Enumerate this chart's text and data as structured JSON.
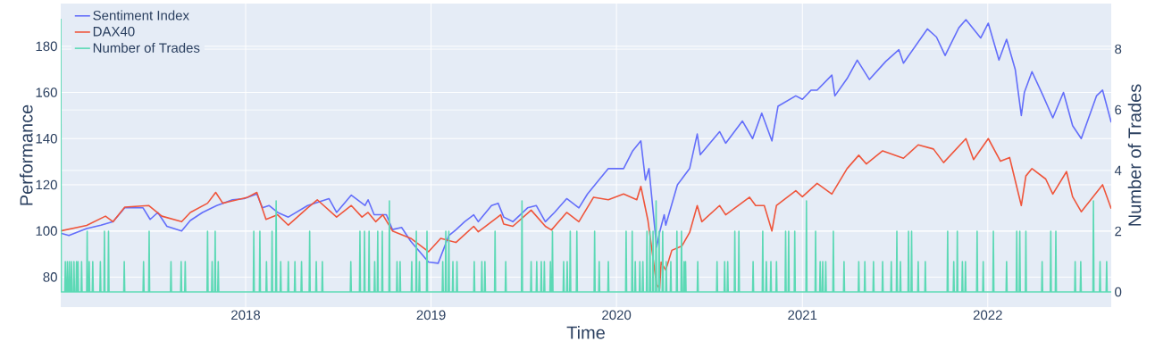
{
  "chart_data": {
    "type": "line",
    "xlabel": "Time",
    "ylabel": "Performance",
    "y2label": "Number of Trades",
    "xlim": [
      "2017-01-02",
      "2022-09-01"
    ],
    "xticks": [
      {
        "value": "2018-01-01",
        "label": "2018"
      },
      {
        "value": "2019-01-01",
        "label": "2019"
      },
      {
        "value": "2020-01-01",
        "label": "2020"
      },
      {
        "value": "2021-01-01",
        "label": "2021"
      },
      {
        "value": "2022-01-01",
        "label": "2022"
      }
    ],
    "ylim": [
      67,
      198.5
    ],
    "yticks": [
      80,
      100,
      120,
      140,
      160,
      180
    ],
    "y2lim": [
      -0.5,
      9.5
    ],
    "y2ticks": [
      0,
      2,
      4,
      6,
      8
    ],
    "grid": true,
    "legend": "top left",
    "series": [
      {
        "name": "Sentiment Index",
        "color": "#636efa",
        "x": [
          "2017-01-02",
          "2017-01-18",
          "2017-02-22",
          "2017-03-22",
          "2017-04-15",
          "2017-05-08",
          "2017-06-13",
          "2017-06-27",
          "2017-07-12",
          "2017-07-30",
          "2017-08-28",
          "2017-09-14",
          "2017-10-08",
          "2017-11-05",
          "2017-12-06",
          "2017-12-29",
          "2018-01-23",
          "2018-02-03",
          "2018-02-16",
          "2018-03-05",
          "2018-03-26",
          "2018-05-03",
          "2018-06-14",
          "2018-06-29",
          "2018-07-28",
          "2018-08-24",
          "2018-08-30",
          "2018-09-11",
          "2018-10-05",
          "2018-10-17",
          "2018-11-04",
          "2018-11-22",
          "2018-12-27",
          "2019-01-15",
          "2019-02-05",
          "2019-02-19",
          "2019-03-08",
          "2019-03-26",
          "2019-04-04",
          "2019-04-30",
          "2019-05-13",
          "2019-05-24",
          "2019-06-11",
          "2019-07-10",
          "2019-07-27",
          "2019-08-14",
          "2019-09-01",
          "2019-09-25",
          "2019-10-19",
          "2019-11-05",
          "2019-11-29",
          "2019-12-16",
          "2020-01-15",
          "2020-02-02",
          "2020-02-18",
          "2020-02-27",
          "2020-03-05",
          "2020-03-20",
          "2020-03-26",
          "2020-04-04",
          "2020-04-07",
          "2020-04-30",
          "2020-05-24",
          "2020-06-08",
          "2020-06-14",
          "2020-07-22",
          "2020-08-03",
          "2020-09-05",
          "2020-09-25",
          "2020-10-13",
          "2020-11-02",
          "2020-11-14",
          "2020-12-19",
          "2021-01-01",
          "2021-01-18",
          "2021-01-30",
          "2021-02-28",
          "2021-03-06",
          "2021-03-30",
          "2021-04-19",
          "2021-05-13",
          "2021-06-14",
          "2021-07-10",
          "2021-07-19",
          "2021-09-04",
          "2021-09-22",
          "2021-10-09",
          "2021-11-05",
          "2021-11-19",
          "2021-12-18",
          "2022-01-02",
          "2022-01-23",
          "2022-02-07",
          "2022-02-24",
          "2022-03-08",
          "2022-03-14",
          "2022-03-29",
          "2022-04-19",
          "2022-05-09",
          "2022-05-30",
          "2022-06-17",
          "2022-07-04",
          "2022-08-03",
          "2022-08-15",
          "2022-09-01"
        ],
        "values": [
          99,
          98,
          101,
          102.5,
          104,
          110,
          110,
          105,
          108,
          102,
          100,
          104.5,
          108,
          111,
          113.5,
          114,
          116,
          110,
          111,
          108,
          106,
          111,
          114,
          108,
          115.5,
          111,
          113.5,
          107,
          107,
          100.6,
          101.5,
          95.5,
          86.5,
          86,
          98,
          100.5,
          104,
          107,
          104,
          111,
          112,
          106,
          104,
          110,
          111,
          104,
          108,
          114,
          110,
          116,
          122.5,
          127,
          127,
          134.7,
          139,
          122,
          127,
          93,
          99.5,
          107,
          102.5,
          120,
          127,
          142,
          133,
          143,
          138,
          147.6,
          140,
          151,
          139,
          154,
          158.5,
          157,
          161,
          161,
          167.5,
          158.5,
          166,
          174,
          165.6,
          173.4,
          178.5,
          172.7,
          187.5,
          184,
          176,
          188,
          191.5,
          183.6,
          190,
          174,
          183,
          170,
          150,
          160,
          169,
          159,
          149,
          160,
          145.6,
          140,
          158.5,
          161,
          147
        ]
      },
      {
        "name": "DAX40",
        "color": "#ef553b",
        "x": [
          "2017-01-02",
          "2017-02-22",
          "2017-03-31",
          "2017-04-15",
          "2017-05-08",
          "2017-06-24",
          "2017-07-20",
          "2017-08-28",
          "2017-09-14",
          "2017-10-18",
          "2017-11-03",
          "2017-11-17",
          "2018-01-05",
          "2018-01-23",
          "2018-02-10",
          "2018-03-05",
          "2018-03-26",
          "2018-05-03",
          "2018-05-22",
          "2018-06-29",
          "2018-07-28",
          "2018-08-18",
          "2018-08-30",
          "2018-09-14",
          "2018-09-28",
          "2018-10-17",
          "2018-11-22",
          "2018-12-27",
          "2019-01-20",
          "2019-02-19",
          "2019-03-26",
          "2019-04-04",
          "2019-05-18",
          "2019-05-24",
          "2019-06-11",
          "2019-07-17",
          "2019-08-14",
          "2019-08-26",
          "2019-09-25",
          "2019-10-19",
          "2019-11-17",
          "2019-12-16",
          "2020-01-15",
          "2020-02-10",
          "2020-02-18",
          "2020-03-03",
          "2020-03-20",
          "2020-03-26",
          "2020-03-29",
          "2020-04-07",
          "2020-04-19",
          "2020-05-09",
          "2020-05-24",
          "2020-06-08",
          "2020-06-17",
          "2020-07-22",
          "2020-08-03",
          "2020-09-19",
          "2020-10-01",
          "2020-10-18",
          "2020-11-02",
          "2020-11-11",
          "2020-12-19",
          "2021-01-01",
          "2021-01-30",
          "2021-02-28",
          "2021-03-30",
          "2021-04-22",
          "2021-05-07",
          "2021-06-08",
          "2021-07-19",
          "2021-08-17",
          "2021-09-16",
          "2021-10-06",
          "2021-11-19",
          "2021-12-04",
          "2022-01-02",
          "2022-01-26",
          "2022-02-13",
          "2022-03-08",
          "2022-03-17",
          "2022-03-29",
          "2022-04-25",
          "2022-05-09",
          "2022-06-05",
          "2022-06-17",
          "2022-07-04",
          "2022-08-15",
          "2022-09-01"
        ],
        "values": [
          100,
          102.4,
          106.4,
          104,
          110.3,
          111,
          106.4,
          104,
          108,
          112,
          116.7,
          112,
          114.6,
          116.7,
          105,
          107,
          102.5,
          110,
          113.5,
          106,
          111,
          106,
          108,
          104,
          107,
          100,
          96.8,
          91,
          96.8,
          95,
          102,
          99.6,
          107,
          103,
          102,
          109,
          102,
          100.4,
          108,
          104,
          114.6,
          113.5,
          116,
          113.5,
          119.3,
          104.5,
          76.8,
          75,
          86.5,
          83,
          91.6,
          93.5,
          99.3,
          111,
          104,
          111,
          107,
          114.6,
          111,
          111,
          100,
          111,
          117.4,
          114.8,
          120.6,
          116,
          127,
          132.8,
          129,
          134.7,
          131.5,
          137.3,
          135.5,
          129.6,
          140,
          130.9,
          140,
          130.2,
          131.8,
          111,
          123.8,
          127,
          122.5,
          116,
          125.7,
          114.8,
          108.3,
          120,
          109.6
        ]
      },
      {
        "name": "Number of Trades",
        "color": "#5cd9b5",
        "axis": "y2",
        "x": [
          "2017-01-02",
          "2017-01-03",
          "2017-01-10",
          "2017-01-11",
          "2017-01-12",
          "2017-01-14",
          "2017-01-15",
          "2017-01-16",
          "2017-01-18",
          "2017-01-19",
          "2017-01-20",
          "2017-01-22",
          "2017-01-23",
          "2017-01-24",
          "2017-01-27",
          "2017-01-28",
          "2017-01-29",
          "2017-02-01",
          "2017-02-02",
          "2017-02-03",
          "2017-02-04",
          "2017-02-05",
          "2017-02-06",
          "2017-02-11",
          "2017-02-12",
          "2017-02-13",
          "2017-02-22",
          "2017-02-23",
          "2017-02-24",
          "2017-02-26",
          "2017-02-27",
          "2017-02-28",
          "2017-03-05",
          "2017-03-06",
          "2017-03-07",
          "2017-03-20",
          "2017-03-21",
          "2017-03-22",
          "2017-03-28",
          "2017-03-29",
          "2017-03-30",
          "2017-04-05",
          "2017-04-06",
          "2017-04-07",
          "2017-05-06",
          "2017-05-07",
          "2017-05-08",
          "2017-06-13",
          "2017-06-14",
          "2017-06-15",
          "2017-06-24",
          "2017-06-25",
          "2017-06-26",
          "2017-08-06",
          "2017-08-07",
          "2017-08-08",
          "2017-08-26",
          "2017-08-27",
          "2017-08-28",
          "2017-09-03",
          "2017-09-04",
          "2017-09-05",
          "2017-10-17",
          "2017-10-18",
          "2017-10-19",
          "2017-10-26",
          "2017-10-27",
          "2017-10-28",
          "2017-11-01",
          "2017-11-02",
          "2017-11-03",
          "2017-11-07",
          "2017-11-08",
          "2017-11-09",
          "2018-01-16",
          "2018-01-17",
          "2018-01-18",
          "2018-01-28",
          "2018-01-29",
          "2018-01-30",
          "2018-02-10",
          "2018-02-11",
          "2018-02-12",
          "2018-02-21",
          "2018-02-22",
          "2018-02-23",
          "2018-03-01",
          "2018-03-02",
          "2018-03-03",
          "2018-03-10",
          "2018-03-11",
          "2018-03-12",
          "2018-03-25",
          "2018-03-26",
          "2018-03-27",
          "2018-04-07",
          "2018-04-08",
          "2018-04-09",
          "2018-04-20",
          "2018-04-21",
          "2018-04-22",
          "2018-05-06",
          "2018-05-07",
          "2018-05-08",
          "2018-05-19",
          "2018-05-20",
          "2018-05-21",
          "2018-05-31",
          "2018-06-01",
          "2018-06-02",
          "2018-07-26",
          "2018-07-27",
          "2018-07-28",
          "2018-08-13",
          "2018-08-14",
          "2018-08-15",
          "2018-08-22",
          "2018-08-23",
          "2018-08-24",
          "2018-08-31",
          "2018-09-01",
          "2018-09-02",
          "2018-09-11",
          "2018-09-12",
          "2018-09-13",
          "2018-09-17",
          "2018-09-18",
          "2018-09-19",
          "2018-09-26",
          "2018-09-27",
          "2018-09-28",
          "2018-10-10",
          "2018-10-11",
          "2018-10-12",
          "2018-10-25",
          "2018-10-26",
          "2018-10-27",
          "2018-10-31",
          "2018-11-01",
          "2018-11-02",
          "2018-11-23",
          "2018-11-24",
          "2018-11-25",
          "2018-12-02",
          "2018-12-03",
          "2018-12-04",
          "2018-12-08",
          "2018-12-09",
          "2018-12-10",
          "2018-12-23",
          "2018-12-24",
          "2018-12-25",
          "2019-01-23",
          "2019-01-24",
          "2019-01-25",
          "2019-01-29",
          "2019-01-30",
          "2019-01-31",
          "2019-02-04",
          "2019-02-05",
          "2019-02-06",
          "2019-02-12",
          "2019-02-13",
          "2019-02-14",
          "2019-02-20",
          "2019-02-21",
          "2019-02-22",
          "2019-03-26",
          "2019-03-27",
          "2019-03-28",
          "2019-04-10",
          "2019-04-11",
          "2019-04-12",
          "2019-04-16",
          "2019-04-17",
          "2019-04-18",
          "2019-05-06",
          "2019-05-07",
          "2019-05-08",
          "2019-05-27",
          "2019-05-28",
          "2019-05-29",
          "2019-06-28",
          "2019-06-29",
          "2019-06-30",
          "2019-07-16",
          "2019-07-17",
          "2019-07-18",
          "2019-07-27",
          "2019-07-28",
          "2019-07-29",
          "2019-08-05",
          "2019-08-06",
          "2019-08-07",
          "2019-08-11",
          "2019-08-12",
          "2019-08-13",
          "2019-08-23",
          "2019-08-24",
          "2019-08-25",
          "2019-08-27",
          "2019-08-28",
          "2019-08-29",
          "2019-09-18",
          "2019-09-19",
          "2019-09-20",
          "2019-09-25",
          "2019-09-26",
          "2019-09-27",
          "2019-10-01",
          "2019-10-02",
          "2019-10-03",
          "2019-10-14",
          "2019-10-15",
          "2019-10-16",
          "2019-11-18",
          "2019-11-19",
          "2019-11-20",
          "2019-11-27",
          "2019-11-28",
          "2019-11-29",
          "2019-12-15",
          "2019-12-16",
          "2019-12-17",
          "2020-01-19",
          "2020-01-20",
          "2020-01-21",
          "2020-01-31",
          "2020-02-01",
          "2020-02-02",
          "2020-02-06",
          "2020-02-07",
          "2020-02-08",
          "2020-02-15",
          "2020-02-16",
          "2020-02-17",
          "2020-02-21",
          "2020-02-22",
          "2020-02-23",
          "2020-02-29",
          "2020-03-01",
          "2020-03-02",
          "2020-03-06",
          "2020-03-07",
          "2020-03-08",
          "2020-03-12",
          "2020-03-13",
          "2020-03-14",
          "2020-03-18",
          "2020-03-19",
          "2020-03-20",
          "2020-03-24",
          "2020-03-25",
          "2020-03-26",
          "2020-03-31",
          "2020-04-01",
          "2020-04-02",
          "2020-04-07",
          "2020-04-08",
          "2020-04-09",
          "2020-04-16",
          "2020-04-17",
          "2020-04-18",
          "2020-04-28",
          "2020-04-29",
          "2020-04-30",
          "2020-05-07",
          "2020-05-08",
          "2020-05-09",
          "2020-05-12",
          "2020-05-13",
          "2020-05-14",
          "2020-05-15",
          "2020-05-16",
          "2020-05-17",
          "2020-06-08",
          "2020-06-09",
          "2020-06-10",
          "2020-07-16",
          "2020-07-17",
          "2020-07-18",
          "2020-07-31",
          "2020-08-01",
          "2020-08-02",
          "2020-08-06",
          "2020-08-07",
          "2020-08-08",
          "2020-08-20",
          "2020-08-21",
          "2020-08-22",
          "2020-08-28",
          "2020-08-29",
          "2020-08-30",
          "2020-09-25",
          "2020-09-26",
          "2020-09-27",
          "2020-10-14",
          "2020-10-15",
          "2020-10-16",
          "2020-10-21",
          "2020-10-22",
          "2020-10-23",
          "2020-10-30",
          "2020-10-31",
          "2020-11-01",
          "2020-11-10",
          "2020-11-11",
          "2020-11-12",
          "2020-11-28",
          "2020-11-29",
          "2020-11-30",
          "2020-12-04",
          "2020-12-05",
          "2020-12-06",
          "2020-12-16",
          "2020-12-17",
          "2020-12-18",
          "2021-01-08",
          "2021-01-09",
          "2021-01-10",
          "2021-01-26",
          "2021-01-27",
          "2021-01-28",
          "2021-02-04",
          "2021-02-05",
          "2021-02-06",
          "2021-02-09",
          "2021-02-10",
          "2021-02-11",
          "2021-02-15",
          "2021-02-16",
          "2021-02-17",
          "2021-03-02",
          "2021-03-03",
          "2021-03-04",
          "2021-03-23",
          "2021-03-24",
          "2021-03-25",
          "2021-04-21",
          "2021-04-22",
          "2021-04-23",
          "2021-05-03",
          "2021-05-04",
          "2021-05-05",
          "2021-05-20",
          "2021-05-21",
          "2021-05-22",
          "2021-06-07",
          "2021-06-08",
          "2021-06-09",
          "2021-06-24",
          "2021-06-25",
          "2021-06-26",
          "2021-07-05",
          "2021-07-06",
          "2021-07-07",
          "2021-07-12",
          "2021-07-13",
          "2021-07-14",
          "2021-07-28",
          "2021-07-29",
          "2021-07-30",
          "2021-08-03",
          "2021-08-04",
          "2021-08-05",
          "2021-08-16",
          "2021-08-17",
          "2021-08-18",
          "2021-08-30",
          "2021-08-31",
          "2021-09-01",
          "2021-10-13",
          "2021-10-14",
          "2021-10-15",
          "2021-10-25",
          "2021-10-26",
          "2021-10-27",
          "2021-11-01",
          "2021-11-02",
          "2021-11-03",
          "2021-11-11",
          "2021-11-12",
          "2021-11-13",
          "2021-11-17",
          "2021-11-18",
          "2021-11-19",
          "2021-12-10",
          "2021-12-11",
          "2021-12-12",
          "2021-12-22",
          "2021-12-23",
          "2021-12-24",
          "2022-01-11",
          "2022-01-12",
          "2022-01-13",
          "2022-02-06",
          "2022-02-07",
          "2022-02-08",
          "2022-02-26",
          "2022-02-27",
          "2022-02-28",
          "2022-03-04",
          "2022-03-05",
          "2022-03-06",
          "2022-03-16",
          "2022-03-17",
          "2022-03-18",
          "2022-04-17",
          "2022-04-18",
          "2022-04-19",
          "2022-05-04",
          "2022-05-05",
          "2022-05-06",
          "2022-05-14",
          "2022-05-15",
          "2022-05-16",
          "2022-06-21",
          "2022-06-22",
          "2022-06-23",
          "2022-07-02",
          "2022-07-03",
          "2022-07-04",
          "2022-07-27",
          "2022-07-28",
          "2022-07-29",
          "2022-08-09",
          "2022-08-10",
          "2022-08-11",
          "2022-08-22",
          "2022-08-23",
          "2022-08-24",
          "2022-09-01"
        ],
        "values": [
          9,
          0,
          0,
          1,
          0,
          0,
          1,
          0,
          0,
          1,
          0,
          0,
          1,
          0,
          0,
          1,
          0,
          0,
          1,
          0,
          0,
          1,
          0,
          0,
          1,
          0,
          0,
          2,
          0,
          0,
          1,
          0,
          0,
          1,
          0,
          0,
          1,
          0,
          0,
          2,
          0,
          0,
          2,
          0,
          0,
          1,
          0,
          0,
          1,
          0,
          0,
          2,
          0,
          0,
          1,
          0,
          0,
          1,
          0,
          0,
          1,
          0,
          0,
          2,
          0,
          0,
          1,
          0,
          0,
          2,
          0,
          0,
          1,
          0,
          0,
          2,
          0,
          0,
          2,
          0,
          0,
          1,
          0,
          0,
          2,
          0,
          0,
          3,
          0,
          0,
          1,
          0,
          0,
          1,
          0,
          0,
          1,
          0,
          0,
          1,
          0,
          0,
          2,
          0,
          0,
          1,
          0,
          0,
          1,
          0,
          0,
          1,
          0,
          0,
          2,
          0,
          0,
          2,
          0,
          0,
          2,
          0,
          0,
          1,
          0,
          0,
          2,
          0,
          0,
          2,
          0,
          0,
          3,
          0,
          0,
          1,
          0,
          0,
          1,
          0,
          0,
          1,
          0,
          0,
          2,
          0,
          0,
          1,
          0,
          0,
          2,
          0,
          0,
          1,
          0,
          0,
          2,
          0,
          0,
          2,
          0,
          0,
          1,
          0,
          0,
          1,
          0,
          0,
          1,
          0,
          0,
          1,
          0,
          0,
          1,
          0,
          0,
          2,
          0,
          0,
          1,
          0,
          0,
          3,
          0,
          0,
          1,
          0,
          0,
          1,
          0,
          0,
          1,
          0,
          0,
          1,
          0,
          0,
          1,
          0,
          0,
          2,
          0,
          0,
          1,
          0,
          0,
          1,
          0,
          0,
          2,
          0,
          0,
          2,
          0,
          0,
          2,
          0,
          0,
          1,
          0,
          0,
          1,
          0,
          0,
          2,
          0,
          0,
          2,
          0,
          0,
          1,
          0,
          0,
          1,
          0,
          0,
          1,
          0,
          0,
          2,
          0,
          0,
          2,
          0,
          0,
          2,
          0,
          0,
          3,
          0,
          0,
          2,
          0,
          0,
          2,
          0,
          0,
          1,
          0,
          0,
          1,
          0,
          0,
          2,
          0,
          0,
          2,
          0,
          0,
          1,
          0,
          0,
          1,
          0,
          0,
          1,
          0,
          0,
          1,
          0,
          0,
          1,
          0,
          0,
          1,
          0,
          0,
          2,
          0,
          0,
          2,
          0,
          0,
          1,
          0,
          0,
          2,
          0,
          0,
          1,
          0,
          0,
          1,
          0,
          0,
          1,
          0,
          0,
          2,
          0,
          0,
          2,
          0,
          0,
          2,
          0,
          0,
          3,
          0,
          0,
          2,
          0,
          0,
          1,
          0,
          0,
          1,
          0,
          0,
          1,
          0,
          0,
          2,
          0,
          0,
          1,
          0,
          0,
          1,
          0,
          0,
          1,
          0,
          0,
          1,
          0,
          0,
          1,
          0,
          0,
          1,
          0,
          0,
          2,
          0,
          0,
          1,
          0,
          0,
          2,
          0,
          0,
          2,
          0,
          0,
          1,
          0,
          0,
          1,
          0,
          0,
          2,
          0,
          0,
          1,
          0,
          0,
          2,
          0,
          0,
          1,
          0,
          0,
          1,
          0,
          0,
          2,
          0,
          0,
          1,
          0,
          0,
          2,
          0,
          0,
          1,
          0,
          0,
          2,
          0,
          0,
          2,
          0,
          0,
          2,
          0,
          0,
          1,
          0,
          0,
          2,
          0,
          0,
          2,
          0,
          0,
          1,
          0,
          0,
          1,
          0,
          0,
          3,
          0,
          0,
          1,
          0,
          0,
          1,
          0,
          0
        ]
      }
    ]
  }
}
